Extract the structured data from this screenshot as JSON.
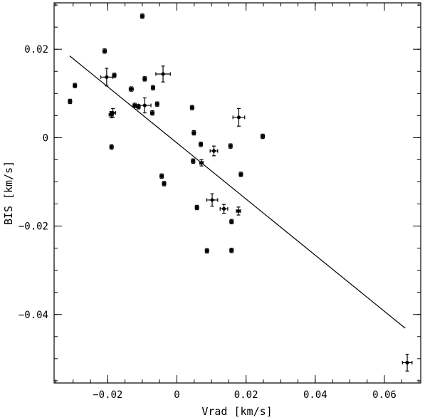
{
  "chart_data": {
    "type": "scatter",
    "xlabel": "Vrad [km/s]",
    "ylabel": "BIS [km/s]",
    "xlim": [
      -0.0355,
      0.0705
    ],
    "ylim": [
      -0.0555,
      0.0305
    ],
    "xticks_major": [
      -0.02,
      0,
      0.02,
      0.04,
      0.06
    ],
    "xtick_labels": [
      "−0.02",
      "0",
      "0.02",
      "0.04",
      "0.06"
    ],
    "xticks_minor_step": 0.005,
    "yticks_major": [
      -0.04,
      -0.02,
      0,
      0.02
    ],
    "ytick_labels": [
      "−0.04",
      "−0.02",
      "0",
      "0.02"
    ],
    "yticks_minor_step": 0.005,
    "grid": false,
    "points": [
      {
        "x": -0.0309,
        "y": 0.0082,
        "xerr": 0.0005,
        "yerr": 0.0005
      },
      {
        "x": -0.0295,
        "y": 0.0118,
        "xerr": 0.0005,
        "yerr": 0.0005
      },
      {
        "x": -0.0209,
        "y": 0.0196,
        "xerr": 0.0005,
        "yerr": 0.0005
      },
      {
        "x": -0.0203,
        "y": 0.0137,
        "xerr": 0.0017,
        "yerr": 0.002
      },
      {
        "x": -0.0181,
        "y": 0.0141,
        "xerr": 0.0005,
        "yerr": 0.0005
      },
      {
        "x": -0.019,
        "y": 0.0052,
        "xerr": 0.0006,
        "yerr": 0.0007
      },
      {
        "x": -0.0185,
        "y": 0.0056,
        "xerr": 0.0008,
        "yerr": 0.001
      },
      {
        "x": -0.0189,
        "y": -0.0021,
        "xerr": 0.0005,
        "yerr": 0.0005
      },
      {
        "x": -0.01,
        "y": 0.0275,
        "xerr": 0.0005,
        "yerr": 0.0005
      },
      {
        "x": -0.0132,
        "y": 0.011,
        "xerr": 0.0006,
        "yerr": 0.0005
      },
      {
        "x": -0.0093,
        "y": 0.0133,
        "xerr": 0.0005,
        "yerr": 0.0005
      },
      {
        "x": -0.0122,
        "y": 0.0073,
        "xerr": 0.0005,
        "yerr": 0.0005
      },
      {
        "x": -0.0111,
        "y": 0.007,
        "xerr": 0.0005,
        "yerr": 0.0005
      },
      {
        "x": -0.0093,
        "y": 0.0073,
        "xerr": 0.0018,
        "yerr": 0.0017
      },
      {
        "x": -0.0069,
        "y": 0.0113,
        "xerr": 0.0005,
        "yerr": 0.0005
      },
      {
        "x": -0.0071,
        "y": 0.0056,
        "xerr": 0.0005,
        "yerr": 0.0005
      },
      {
        "x": -0.0057,
        "y": 0.0076,
        "xerr": 0.0005,
        "yerr": 0.0005
      },
      {
        "x": -0.004,
        "y": 0.0144,
        "xerr": 0.0021,
        "yerr": 0.0018
      },
      {
        "x": -0.0044,
        "y": -0.0087,
        "xerr": 0.0005,
        "yerr": 0.0005
      },
      {
        "x": -0.0037,
        "y": -0.0104,
        "xerr": 0.0005,
        "yerr": 0.0005
      },
      {
        "x": 0.0044,
        "y": 0.0068,
        "xerr": 0.0005,
        "yerr": 0.0005
      },
      {
        "x": 0.0049,
        "y": 0.0011,
        "xerr": 0.0005,
        "yerr": 0.0005
      },
      {
        "x": 0.0047,
        "y": -0.0053,
        "xerr": 0.0005,
        "yerr": 0.0005
      },
      {
        "x": 0.0069,
        "y": -0.0015,
        "xerr": 0.0005,
        "yerr": 0.0005
      },
      {
        "x": 0.0071,
        "y": -0.0057,
        "xerr": 0.0005,
        "yerr": 0.0007
      },
      {
        "x": 0.0058,
        "y": -0.0158,
        "xerr": 0.0005,
        "yerr": 0.0005
      },
      {
        "x": 0.0087,
        "y": -0.0256,
        "xerr": 0.0005,
        "yerr": 0.0005
      },
      {
        "x": 0.0102,
        "y": -0.0141,
        "xerr": 0.0016,
        "yerr": 0.0014
      },
      {
        "x": 0.0107,
        "y": -0.003,
        "xerr": 0.0011,
        "yerr": 0.0011
      },
      {
        "x": 0.0136,
        "y": -0.0161,
        "xerr": 0.0011,
        "yerr": 0.001
      },
      {
        "x": 0.0155,
        "y": -0.0019,
        "xerr": 0.0005,
        "yerr": 0.0005
      },
      {
        "x": 0.0158,
        "y": -0.019,
        "xerr": 0.0005,
        "yerr": 0.0005
      },
      {
        "x": 0.0158,
        "y": -0.0255,
        "xerr": 0.0005,
        "yerr": 0.0005
      },
      {
        "x": 0.0179,
        "y": 0.0046,
        "xerr": 0.0017,
        "yerr": 0.002
      },
      {
        "x": 0.0178,
        "y": -0.0166,
        "xerr": 0.0006,
        "yerr": 0.0009
      },
      {
        "x": 0.0185,
        "y": -0.0083,
        "xerr": 0.0005,
        "yerr": 0.0005
      },
      {
        "x": 0.0248,
        "y": 0.0003,
        "xerr": 0.0005,
        "yerr": 0.0005
      },
      {
        "x": 0.0666,
        "y": -0.0509,
        "xerr": 0.0014,
        "yerr": 0.0019
      }
    ],
    "fit_line": {
      "x": [
        -0.031,
        0.066
      ],
      "y": [
        0.0185,
        -0.0431
      ]
    }
  }
}
